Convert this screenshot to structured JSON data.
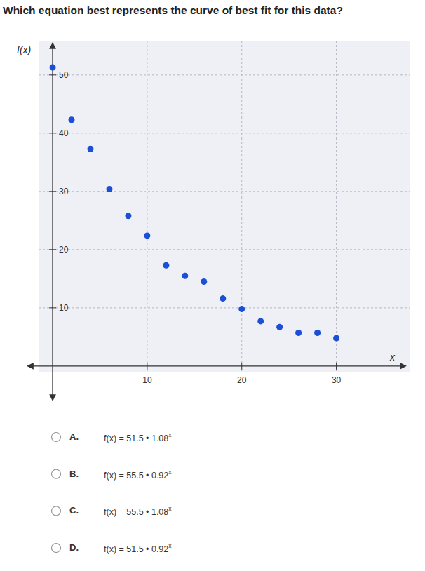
{
  "question": "Which equation best represents the curve of best fit for this data?",
  "chart_data": {
    "type": "scatter",
    "y_label": "f(x)",
    "x_label": "x",
    "x": [
      0,
      2,
      4,
      6,
      8,
      10,
      12,
      14,
      16,
      18,
      20,
      22,
      24,
      26,
      28,
      30
    ],
    "values": [
      51.3,
      42.3,
      37.3,
      30.4,
      25.8,
      22.4,
      17.3,
      15.5,
      14.5,
      11.6,
      9.8,
      7.7,
      6.7,
      5.7,
      5.7,
      4.8
    ],
    "color": "#1a4fd6",
    "marker": "circle",
    "xlim": [
      -2.6,
      37.3
    ],
    "ylim": [
      -5.8,
      55.4
    ],
    "xticks": [
      10,
      20,
      30
    ],
    "yticks": [
      10,
      20,
      30,
      40,
      50
    ],
    "grid": true
  },
  "choices": [
    {
      "letter": "A.",
      "text": "f(x) = 51.5 • 1.08",
      "exponent": "x"
    },
    {
      "letter": "B.",
      "text": "f(x) = 55.5 • 0.92",
      "exponent": "x"
    },
    {
      "letter": "C.",
      "text": "f(x) = 55.5 • 1.08",
      "exponent": "x"
    },
    {
      "letter": "D.",
      "text": "f(x) = 51.5 • 0.92",
      "exponent": "x"
    }
  ]
}
